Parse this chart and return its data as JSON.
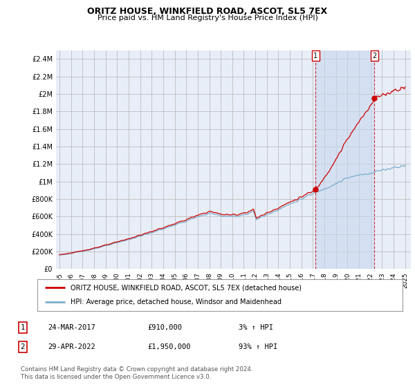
{
  "title1": "ORITZ HOUSE, WINKFIELD ROAD, ASCOT, SL5 7EX",
  "title2": "Price paid vs. HM Land Registry's House Price Index (HPI)",
  "ylabel_ticks": [
    "£0",
    "£200K",
    "£400K",
    "£600K",
    "£800K",
    "£1M",
    "£1.2M",
    "£1.4M",
    "£1.6M",
    "£1.8M",
    "£2M",
    "£2.2M",
    "£2.4M"
  ],
  "ytick_values": [
    0,
    200000,
    400000,
    600000,
    800000,
    1000000,
    1200000,
    1400000,
    1600000,
    1800000,
    2000000,
    2200000,
    2400000
  ],
  "ylim": [
    0,
    2500000
  ],
  "xlim_start": 1994.7,
  "xlim_end": 2025.5,
  "purchase1_x": 2017.22,
  "purchase1_y": 910000,
  "purchase2_x": 2022.33,
  "purchase2_y": 1950000,
  "legend_label1": "ORITZ HOUSE, WINKFIELD ROAD, ASCOT, SL5 7EX (detached house)",
  "legend_label2": "HPI: Average price, detached house, Windsor and Maidenhead",
  "table_row1": [
    "1",
    "24-MAR-2017",
    "£910,000",
    "3% ↑ HPI"
  ],
  "table_row2": [
    "2",
    "29-APR-2022",
    "£1,950,000",
    "93% ↑ HPI"
  ],
  "footnote1": "Contains HM Land Registry data © Crown copyright and database right 2024.",
  "footnote2": "This data is licensed under the Open Government Licence v3.0.",
  "line_color_red": "#cc0000",
  "line_color_blue": "#7aadcc",
  "dot_color_red": "#cc0000",
  "grid_color": "#cccccc",
  "vline_color": "#cc0000",
  "background_color": "#ffffff",
  "plot_bg_color": "#e8eef8",
  "shade_color": "#d0dff0",
  "xtick_years": [
    1995,
    1996,
    1997,
    1998,
    1999,
    2000,
    2001,
    2002,
    2003,
    2004,
    2005,
    2006,
    2007,
    2008,
    2009,
    2010,
    2011,
    2012,
    2013,
    2014,
    2015,
    2016,
    2017,
    2018,
    2019,
    2020,
    2021,
    2022,
    2023,
    2024,
    2025
  ]
}
